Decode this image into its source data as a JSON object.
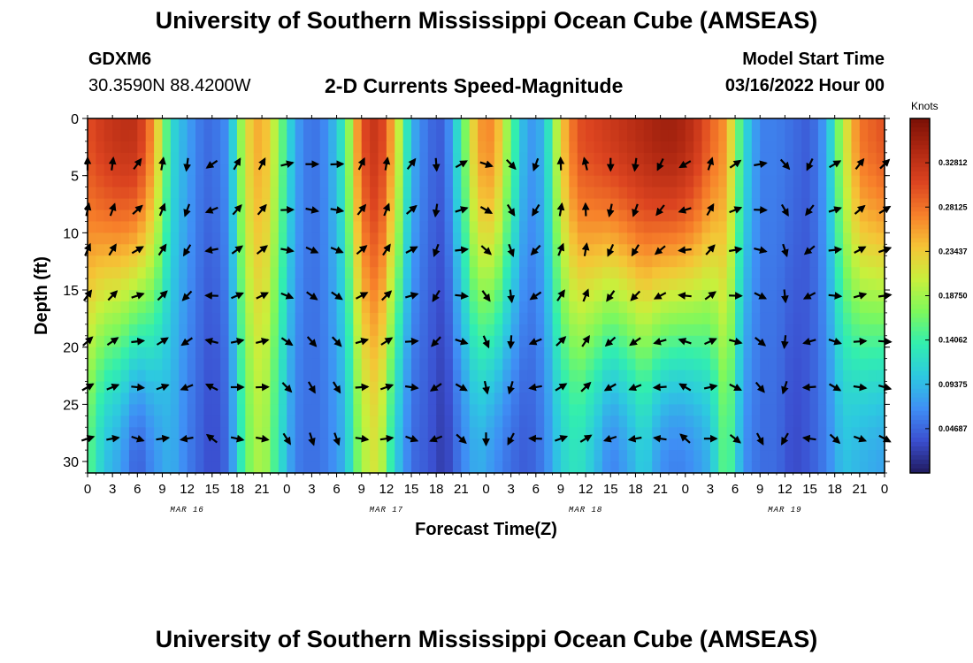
{
  "header": {
    "title": "University of Southern Mississippi Ocean Cube (AMSEAS)",
    "station": "GDXM6",
    "coords": "30.3590N  88.4200W",
    "subtitle": "2-D Currents Speed-Magnitude",
    "model_start_label": "Model Start Time",
    "model_start_value": "03/16/2022 Hour 00"
  },
  "footer": {
    "title": "University of Southern Mississippi Ocean Cube (AMSEAS)"
  },
  "colorbar": {
    "unit": "Knots",
    "ticks": [
      "0.04687",
      "0.09375",
      "0.14062",
      "0.18750",
      "0.23437",
      "0.28125",
      "0.32812"
    ],
    "range": [
      0,
      0.375
    ],
    "colors": [
      "#201a5e",
      "#3b4fd0",
      "#3f8ff5",
      "#2dc9e0",
      "#31eeb0",
      "#7df85c",
      "#c8f03c",
      "#f5c536",
      "#f7802a",
      "#dc4420",
      "#b02812",
      "#7a1006"
    ]
  },
  "chart_data": {
    "type": "heatmap",
    "xlabel": "Forecast Time(Z)",
    "ylabel": "Depth (ft)",
    "xlim": [
      0,
      96
    ],
    "ylim": [
      0,
      31
    ],
    "x_ticks": [
      "0",
      "3",
      "6",
      "9",
      "12",
      "15",
      "18",
      "21",
      "0",
      "3",
      "6",
      "9",
      "12",
      "15",
      "18",
      "21",
      "0",
      "3",
      "6",
      "9",
      "12",
      "15",
      "18",
      "21",
      "0",
      "3",
      "6",
      "9",
      "12",
      "15",
      "18",
      "21",
      "0"
    ],
    "y_ticks": [
      "0",
      "5",
      "10",
      "15",
      "20",
      "25",
      "30"
    ],
    "y_tick_values": [
      0,
      5,
      10,
      15,
      20,
      25,
      30
    ],
    "date_labels": [
      "MAR 16",
      "MAR 17",
      "MAR 18",
      "MAR 19"
    ],
    "date_label_hours": [
      12,
      36,
      60,
      84
    ],
    "vector_depths": [
      4,
      8,
      11.5,
      15.5,
      19.5,
      23.5,
      28
    ],
    "vector_hours": [
      0,
      3,
      6,
      9,
      12,
      15,
      18,
      21,
      24,
      27,
      30,
      33,
      36,
      39,
      42,
      45,
      48,
      51,
      54,
      57,
      60,
      63,
      66,
      69,
      72,
      75,
      78,
      81,
      84,
      87,
      90,
      93,
      96
    ],
    "columns": [
      {
        "hour": 0,
        "top": 0.3,
        "bottom": 0.16,
        "dir": 0
      },
      {
        "hour": 2,
        "top": 0.32,
        "bottom": 0.1,
        "dir": 0
      },
      {
        "hour": 4,
        "top": 0.33,
        "bottom": 0.08,
        "dir": 0
      },
      {
        "hour": 6,
        "top": 0.33,
        "bottom": 0.04,
        "dir": 20
      },
      {
        "hour": 8,
        "top": 0.26,
        "bottom": 0.07,
        "dir": 30
      },
      {
        "hour": 10,
        "top": 0.12,
        "bottom": 0.09,
        "dir": 10
      },
      {
        "hour": 12,
        "top": 0.08,
        "bottom": 0.06,
        "dir": 180
      },
      {
        "hour": 14,
        "top": 0.05,
        "bottom": 0.04,
        "dir": 200
      },
      {
        "hour": 15,
        "top": 0.05,
        "bottom": 0.03,
        "dir": 220
      },
      {
        "hour": 17,
        "top": 0.07,
        "bottom": 0.05,
        "dir": 250
      },
      {
        "hour": 19,
        "top": 0.22,
        "bottom": 0.16,
        "dir": 30
      },
      {
        "hour": 21,
        "top": 0.26,
        "bottom": 0.2,
        "dir": 20
      },
      {
        "hour": 23,
        "top": 0.18,
        "bottom": 0.13,
        "dir": 10
      },
      {
        "hour": 25,
        "top": 0.08,
        "bottom": 0.06,
        "dir": 60
      },
      {
        "hour": 27,
        "top": 0.05,
        "bottom": 0.05,
        "dir": 90
      },
      {
        "hour": 29,
        "top": 0.07,
        "bottom": 0.06,
        "dir": 100
      },
      {
        "hour": 31,
        "top": 0.14,
        "bottom": 0.09,
        "dir": 80
      },
      {
        "hour": 33,
        "top": 0.3,
        "bottom": 0.19,
        "dir": 10
      },
      {
        "hour": 35,
        "top": 0.33,
        "bottom": 0.22,
        "dir": 0
      },
      {
        "hour": 37,
        "top": 0.24,
        "bottom": 0.11,
        "dir": 10
      },
      {
        "hour": 39,
        "top": 0.09,
        "bottom": 0.05,
        "dir": 30
      },
      {
        "hour": 41,
        "top": 0.05,
        "bottom": 0.04,
        "dir": 20
      },
      {
        "hour": 43,
        "top": 0.04,
        "bottom": 0.02,
        "dir": 160
      },
      {
        "hour": 45,
        "top": 0.14,
        "bottom": 0.06,
        "dir": 60
      },
      {
        "hour": 47,
        "top": 0.26,
        "bottom": 0.09,
        "dir": 90
      },
      {
        "hour": 49,
        "top": 0.27,
        "bottom": 0.07,
        "dir": 100
      },
      {
        "hour": 51,
        "top": 0.16,
        "bottom": 0.05,
        "dir": 120
      },
      {
        "hour": 53,
        "top": 0.07,
        "bottom": 0.04,
        "dir": 170
      },
      {
        "hour": 55,
        "top": 0.09,
        "bottom": 0.06,
        "dir": 200
      },
      {
        "hour": 57,
        "top": 0.23,
        "bottom": 0.11,
        "dir": 350
      },
      {
        "hour": 59,
        "top": 0.3,
        "bottom": 0.13,
        "dir": 0
      },
      {
        "hour": 61,
        "top": 0.31,
        "bottom": 0.1,
        "dir": 330
      },
      {
        "hour": 63,
        "top": 0.32,
        "bottom": 0.06,
        "dir": 180
      },
      {
        "hour": 65,
        "top": 0.33,
        "bottom": 0.08,
        "dir": 175
      },
      {
        "hour": 67,
        "top": 0.34,
        "bottom": 0.11,
        "dir": 180
      },
      {
        "hour": 69,
        "top": 0.35,
        "bottom": 0.07,
        "dir": 190
      },
      {
        "hour": 71,
        "top": 0.35,
        "bottom": 0.06,
        "dir": 220
      },
      {
        "hour": 73,
        "top": 0.33,
        "bottom": 0.07,
        "dir": 240
      },
      {
        "hour": 75,
        "top": 0.29,
        "bottom": 0.09,
        "dir": 10
      },
      {
        "hour": 77,
        "top": 0.26,
        "bottom": 0.17,
        "dir": 20
      },
      {
        "hour": 79,
        "top": 0.12,
        "bottom": 0.07,
        "dir": 40
      },
      {
        "hour": 81,
        "top": 0.06,
        "bottom": 0.05,
        "dir": 80
      },
      {
        "hour": 83,
        "top": 0.06,
        "bottom": 0.05,
        "dir": 100
      },
      {
        "hour": 85,
        "top": 0.05,
        "bottom": 0.03,
        "dir": 130
      },
      {
        "hour": 87,
        "top": 0.04,
        "bottom": 0.04,
        "dir": 190
      },
      {
        "hour": 89,
        "top": 0.08,
        "bottom": 0.06,
        "dir": 60
      },
      {
        "hour": 91,
        "top": 0.2,
        "bottom": 0.1,
        "dir": 60
      },
      {
        "hour": 93,
        "top": 0.28,
        "bottom": 0.09,
        "dir": 30
      },
      {
        "hour": 96,
        "top": 0.3,
        "bottom": 0.08,
        "dir": 30
      }
    ]
  }
}
